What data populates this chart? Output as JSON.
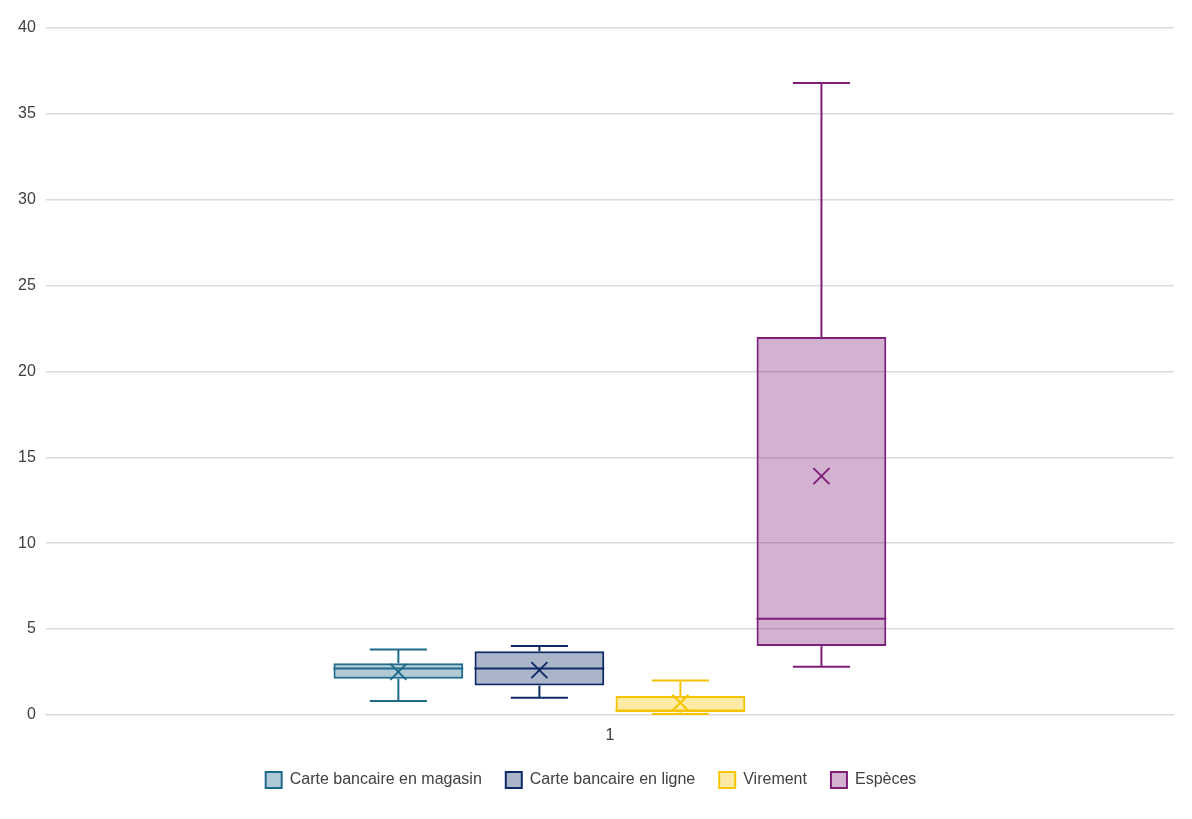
{
  "chart_data": {
    "type": "box",
    "categories": [
      "1"
    ],
    "series": [
      {
        "name": "Carte bancaire en magasin",
        "color": "#1f6a8a",
        "boxes": [
          {
            "low": 0.8,
            "q1": 2.1,
            "median": 2.7,
            "q3": 3.0,
            "high": 3.8,
            "mean": 2.5
          }
        ]
      },
      {
        "name": "Carte bancaire en ligne",
        "color": "#0d2a66",
        "boxes": [
          {
            "low": 1.0,
            "q1": 1.7,
            "median": 2.7,
            "q3": 3.7,
            "high": 4.0,
            "mean": 2.6
          }
        ]
      },
      {
        "name": "Virement",
        "color": "#f5c400",
        "boxes": [
          {
            "low": 0.05,
            "q1": 0.15,
            "median": 0.25,
            "q3": 1.1,
            "high": 2.0,
            "mean": 0.7
          }
        ]
      },
      {
        "name": "Espèces",
        "color": "#7e1f7b",
        "boxes": [
          {
            "low": 2.8,
            "q1": 4.0,
            "median": 5.6,
            "q3": 22.0,
            "high": 36.8,
            "mean": 13.9
          }
        ]
      }
    ],
    "ylim": [
      0,
      40
    ],
    "yticks": [
      0,
      5,
      10,
      15,
      20,
      25,
      30,
      35,
      40
    ],
    "grid": "y",
    "legend": "bottom"
  }
}
